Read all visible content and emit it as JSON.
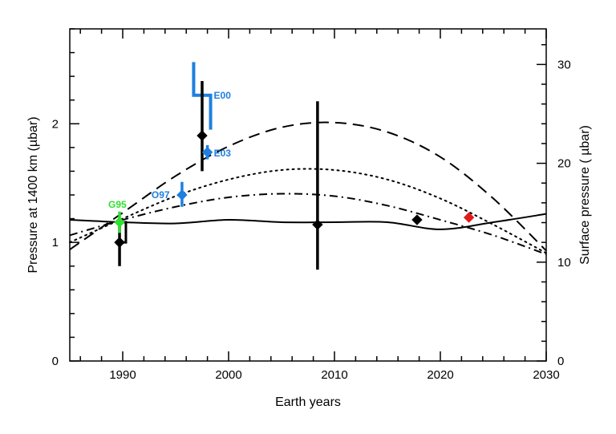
{
  "chart_data": {
    "type": "scatter",
    "title": "",
    "xlabel": "Earth years",
    "ylabel_left": "Pressure at 1400 km (µbar)",
    "ylabel_right": "Surface pressure ( µbar)",
    "xlim": [
      1985,
      2030
    ],
    "ylim_left": [
      0,
      2.8
    ],
    "ylim_right": [
      0,
      33.6
    ],
    "x_ticks": [
      1990,
      2000,
      2010,
      2020,
      2030
    ],
    "y_ticks_left": [
      0,
      1,
      2
    ],
    "y_ticks_right": [
      0,
      10,
      20,
      30
    ],
    "grid": false,
    "legend": "none",
    "colors": {
      "black": "#000000",
      "blue": "#1f7fe0",
      "green": "#2fe02f",
      "red": "#e01b1b"
    },
    "points": [
      {
        "label": "",
        "x": 1989.7,
        "y": 1.0,
        "yerr_low": 0.8,
        "yerr_high": 1.17,
        "color": "#000000"
      },
      {
        "label": "G95",
        "x": 1989.7,
        "y": 1.17,
        "yerr_low": 1.08,
        "yerr_high": 1.26,
        "color": "#2fe02f"
      },
      {
        "label": "O97",
        "x": 1995.6,
        "y": 1.4,
        "yerr_low": 1.3,
        "yerr_high": 1.51,
        "color": "#1f7fe0"
      },
      {
        "label": "",
        "x": 1997.5,
        "y": 1.9,
        "yerr_low": 1.6,
        "yerr_high": 2.36,
        "color": "#000000"
      },
      {
        "label": "E03",
        "x": 1998.0,
        "y": 1.76,
        "yerr_low": 1.7,
        "yerr_high": 1.82,
        "color": "#1f7fe0"
      },
      {
        "label": "",
        "x": 2008.4,
        "y": 1.15,
        "yerr_low": 0.77,
        "yerr_high": 2.19,
        "color": "#000000"
      },
      {
        "label": "",
        "x": 2017.8,
        "y": 1.19,
        "yerr_low": 1.19,
        "yerr_high": 1.19,
        "color": "#000000"
      },
      {
        "label": "",
        "x": 2022.7,
        "y": 1.21,
        "yerr_low": 1.21,
        "yerr_high": 1.21,
        "color": "#e01b1b"
      }
    ],
    "e00_range": {
      "label": "E00",
      "x_left": 1996.7,
      "x_right": 1998.3,
      "y_top": 2.52,
      "y_mid": 2.24,
      "y_bottom": 1.95,
      "color": "#1f7fe0"
    },
    "black_step": {
      "x_left": 1989.7,
      "x_right": 1990.3,
      "y_top": 1.17,
      "y_bottom": 1.0
    },
    "series": [
      {
        "style": "solid",
        "x": [
          1985,
          1990,
          1995,
          2000,
          2005,
          2010,
          2015,
          2020,
          2025,
          2030
        ],
        "y": [
          1.19,
          1.17,
          1.16,
          1.19,
          1.17,
          1.17,
          1.17,
          1.11,
          1.17,
          1.24
        ]
      },
      {
        "style": "dashed",
        "x": [
          1985,
          1990,
          1995,
          2000,
          2005,
          2010,
          2015,
          2020,
          2025,
          2030
        ],
        "y": [
          0.94,
          1.25,
          1.56,
          1.81,
          1.97,
          2.01,
          1.93,
          1.72,
          1.37,
          0.93
        ]
      },
      {
        "style": "dotted",
        "x": [
          1985,
          1990,
          1995,
          2000,
          2005,
          2010,
          2015,
          2020,
          2025,
          2030
        ],
        "y": [
          1.0,
          1.2,
          1.39,
          1.53,
          1.61,
          1.61,
          1.53,
          1.37,
          1.15,
          0.91
        ]
      },
      {
        "style": "dashdot",
        "x": [
          1985,
          1990,
          1995,
          2000,
          2005,
          2010,
          2015,
          2020,
          2025,
          2030
        ],
        "y": [
          1.06,
          1.19,
          1.3,
          1.38,
          1.41,
          1.39,
          1.31,
          1.19,
          1.06,
          0.9
        ]
      }
    ]
  }
}
